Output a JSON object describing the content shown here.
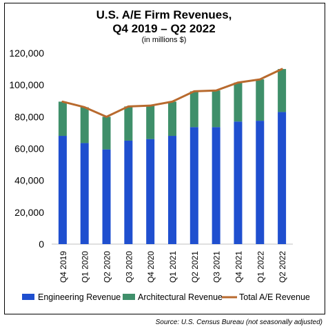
{
  "chart_data": {
    "type": "bar",
    "title_line1": "U.S. A/E Firm Revenues,",
    "title_line2": "Q4 2019 – Q2 2022",
    "subtitle": "(in millions $)",
    "categories": [
      "Q4 2019",
      "Q1 2020",
      "Q2 2020",
      "Q3 2020",
      "Q4 2020",
      "Q1 2021",
      "Q2 2021",
      "Q3 2021",
      "Q4 2021",
      "Q1 2022",
      "Q2 2022"
    ],
    "series": [
      {
        "name": "Engineering Revenue",
        "type": "bar-stacked",
        "color": "#1f4fcf",
        "values": [
          68000,
          63500,
          59500,
          65000,
          66000,
          68000,
          73500,
          73500,
          77000,
          77500,
          83000
        ]
      },
      {
        "name": "Architectural Revenue",
        "type": "bar-stacked",
        "color": "#3f8f6a",
        "values": [
          21500,
          22500,
          20500,
          21500,
          21000,
          21500,
          22500,
          23000,
          24500,
          26000,
          27000
        ]
      },
      {
        "name": "Total A/E Revenue",
        "type": "line",
        "color": "#b86a2e",
        "values": [
          89500,
          86000,
          80000,
          86500,
          87000,
          89500,
          96000,
          96500,
          101500,
          103500,
          110000
        ]
      }
    ],
    "y_ticks": [
      "0",
      "20,000",
      "40,000",
      "60,000",
      "80,000",
      "100,000",
      "120,000"
    ],
    "ylim": [
      0,
      120000
    ],
    "grid": false,
    "legend_position": "bottom",
    "source": "Source: U.S. Census Bureau (not seasonally adjusted)"
  }
}
